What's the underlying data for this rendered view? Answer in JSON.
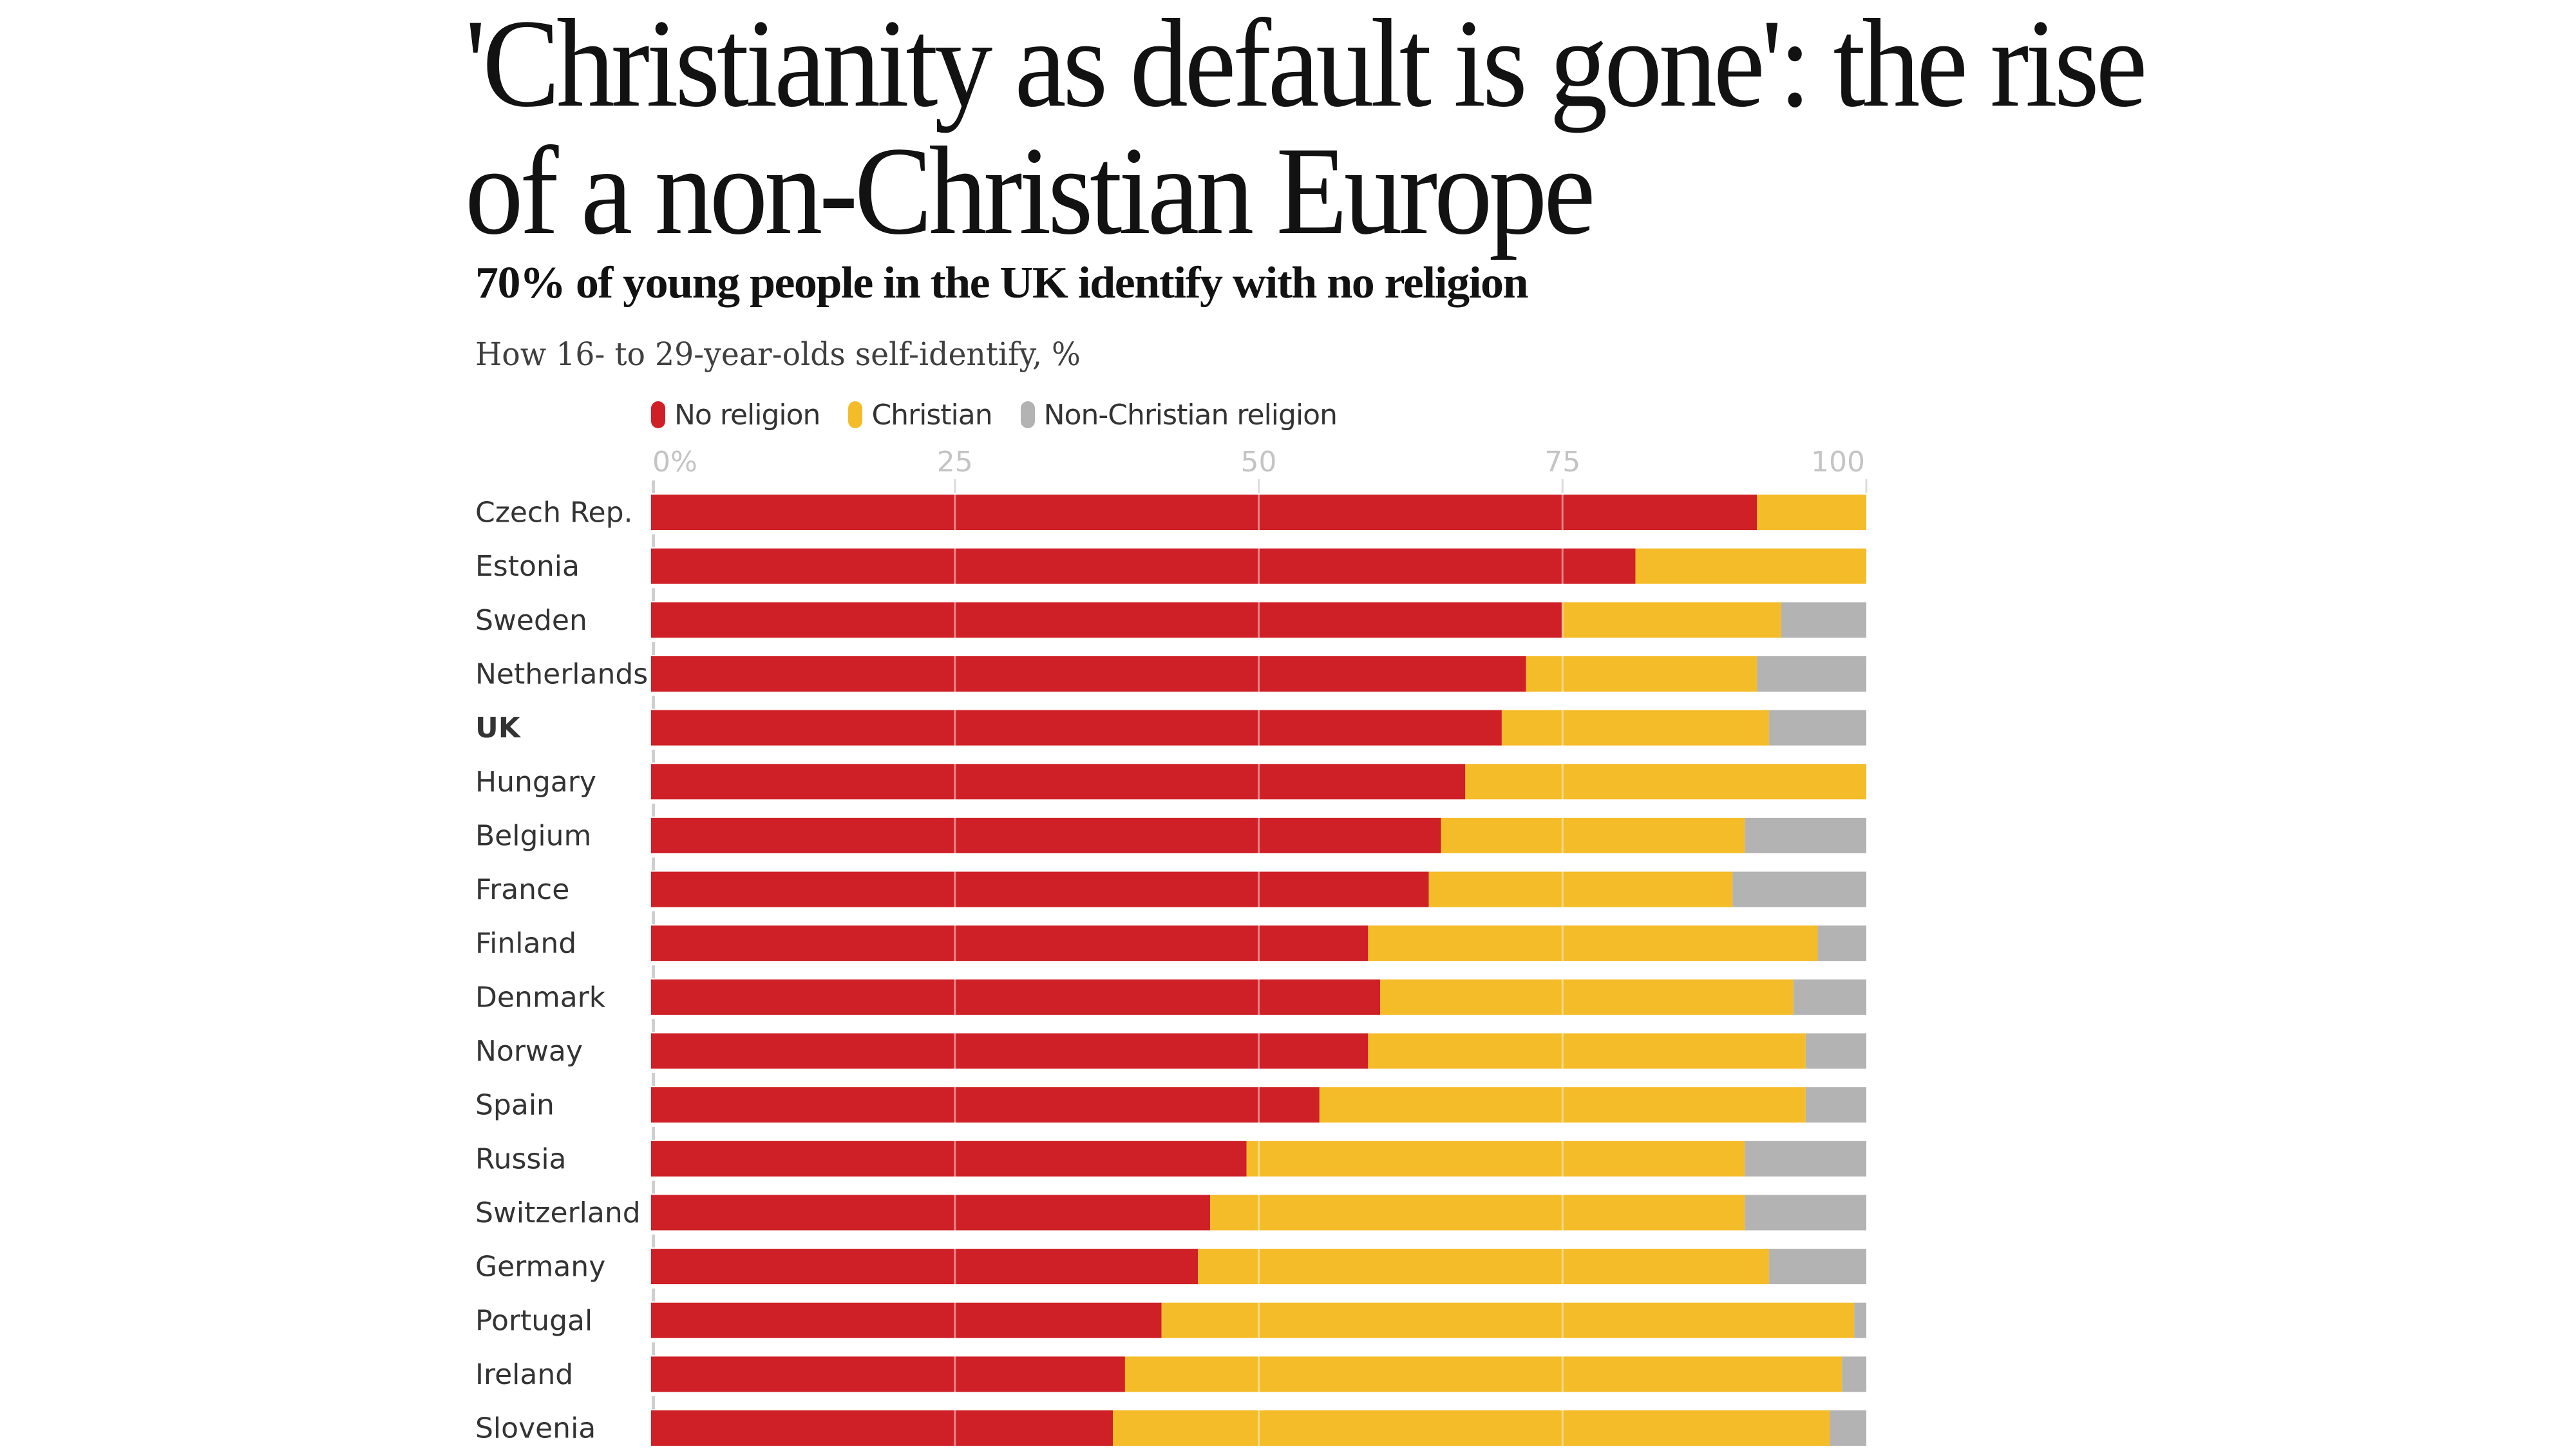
{
  "headline": {
    "lines": [
      "'Christianity as default is gone': the rise",
      "of a non-Christian Europe"
    ]
  },
  "chart_data": {
    "type": "bar",
    "orientation": "horizontal",
    "stacked": true,
    "title": "70% of young people in the UK identify with no religion",
    "subtitle": "How 16- to 29-year-olds self-identify, %",
    "xlabel": "",
    "ylabel": "",
    "xlim": [
      0,
      100
    ],
    "x_ticks": [
      0,
      25,
      50,
      75,
      100
    ],
    "x_tick_labels": [
      "0%",
      "25",
      "50",
      "75",
      "100"
    ],
    "grid": true,
    "legend_position": "top-left",
    "highlighted_category": "UK",
    "categories": [
      "Czech Rep.",
      "Estonia",
      "Sweden",
      "Netherlands",
      "UK",
      "Hungary",
      "Belgium",
      "France",
      "Finland",
      "Denmark",
      "Norway",
      "Spain",
      "Russia",
      "Switzerland",
      "Germany",
      "Portugal",
      "Ireland",
      "Slovenia"
    ],
    "series": [
      {
        "name": "No religion",
        "color": "#cf2027",
        "values": [
          91,
          81,
          75,
          72,
          70,
          67,
          65,
          64,
          59,
          60,
          59,
          55,
          49,
          46,
          45,
          42,
          39,
          38
        ]
      },
      {
        "name": "Christian",
        "color": "#f5bc29",
        "values": [
          9,
          19,
          18,
          19,
          22,
          33,
          25,
          25,
          37,
          34,
          36,
          40,
          41,
          44,
          47,
          57,
          59,
          59
        ]
      },
      {
        "name": "Non-Christian religion",
        "color": "#b3b3b3",
        "values": [
          0,
          0,
          7,
          9,
          8,
          0,
          10,
          11,
          4,
          6,
          5,
          5,
          10,
          10,
          8,
          1,
          2,
          3
        ]
      }
    ]
  }
}
